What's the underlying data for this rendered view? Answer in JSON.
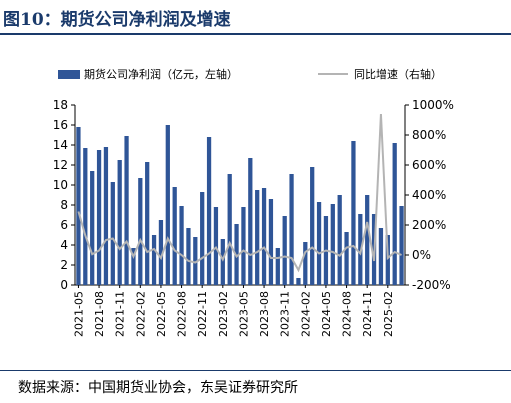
{
  "title": "图10：期货公司净利润及增速",
  "source": "数据来源：中国期货业协会，东吴证券研究所",
  "colors": {
    "bar": "#2f5597",
    "line": "#b4b4b4",
    "title": "#1a3a6b"
  },
  "chart_data": {
    "type": "bar",
    "legend_position": "top",
    "grid": false,
    "categories": [
      "2021-05",
      "2021-06",
      "2021-07",
      "2021-08",
      "2021-09",
      "2021-10",
      "2021-11",
      "2021-12",
      "2022-01",
      "2022-02",
      "2022-03",
      "2022-04",
      "2022-05",
      "2022-06",
      "2022-07",
      "2022-08",
      "2022-09",
      "2022-10",
      "2022-11",
      "2022-12",
      "2023-01",
      "2023-02",
      "2023-03",
      "2023-04",
      "2023-05",
      "2023-06",
      "2023-07",
      "2023-08",
      "2023-09",
      "2023-10",
      "2023-11",
      "2023-12",
      "2024-01",
      "2024-02",
      "2024-03",
      "2024-04",
      "2024-05",
      "2024-06",
      "2024-07",
      "2024-08",
      "2024-09",
      "2024-10",
      "2024-11",
      "2024-12",
      "2025-01",
      "2025-02",
      "2025-03",
      "2025-04"
    ],
    "tick_labels": [
      "2021-05",
      "2021-08",
      "2021-11",
      "2022-02",
      "2022-05",
      "2022-08",
      "2022-11",
      "2023-02",
      "2023-05",
      "2023-08",
      "2023-11",
      "2024-02",
      "2024-05",
      "2024-08",
      "2024-11",
      "2025-02"
    ],
    "ylim_left": [
      0,
      18
    ],
    "yticks_left": [
      "0",
      "2",
      "4",
      "6",
      "8",
      "10",
      "12",
      "14",
      "16",
      "18"
    ],
    "ylim_right": [
      -200,
      1000
    ],
    "yticks_right": [
      "-200%",
      "0%",
      "200%",
      "400%",
      "600%",
      "800%",
      "1000%"
    ],
    "series": [
      {
        "name": "期货公司净利润（亿元，左轴）",
        "type": "bar",
        "axis": "left",
        "values": [
          15.8,
          13.7,
          11.4,
          13.5,
          13.8,
          10.3,
          12.5,
          14.9,
          3.7,
          10.7,
          12.3,
          5.0,
          6.5,
          16.0,
          9.8,
          7.9,
          5.7,
          4.8,
          9.3,
          14.8,
          7.8,
          4.6,
          11.1,
          6.1,
          7.8,
          12.7,
          9.5,
          9.7,
          8.6,
          3.7,
          6.9,
          11.1,
          0.7,
          4.3,
          11.8,
          8.3,
          6.9,
          8.1,
          9.0,
          5.3,
          14.4,
          7.1,
          9.0,
          7.1,
          5.7,
          5.0,
          14.2,
          7.9
        ]
      },
      {
        "name": "同比增速（右轴）",
        "type": "line",
        "axis": "right",
        "values": [
          290,
          130,
          5,
          30,
          100,
          110,
          40,
          90,
          -10,
          100,
          20,
          40,
          -20,
          110,
          30,
          0,
          -40,
          -50,
          -20,
          10,
          50,
          -30,
          80,
          -10,
          30,
          0,
          20,
          50,
          -20,
          -20,
          -10,
          -20,
          -100,
          20,
          50,
          10,
          30,
          20,
          -5,
          50,
          60,
          10,
          220,
          -40,
          940,
          -20,
          20,
          0
        ]
      }
    ]
  }
}
